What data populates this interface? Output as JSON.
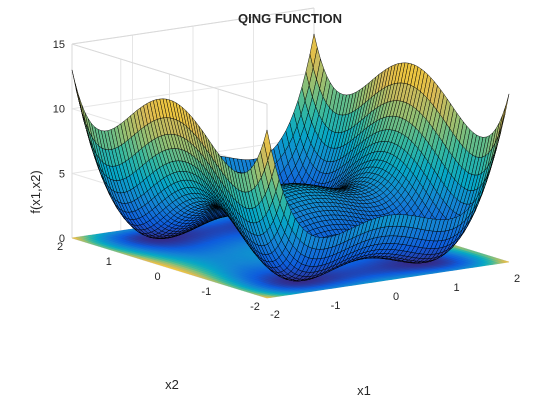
{
  "chart_data": {
    "type": "surface",
    "title": "QING FUNCTION",
    "function": "f(x1,x2) = (x1^2 - 1)^2 + (x2^2 - 2)^2",
    "xlabel": "x1",
    "ylabel": "x2",
    "zlabel": "f(x1,x2)",
    "xlim": [
      -2,
      2
    ],
    "ylim": [
      -2,
      2
    ],
    "zlim": [
      0,
      15
    ],
    "xticks": [
      "-2",
      "-1",
      "0",
      "1",
      "2"
    ],
    "yticks": [
      "-2",
      "-1",
      "0",
      "1",
      "2"
    ],
    "zticks": [
      "0",
      "5",
      "10",
      "15"
    ],
    "grid": true,
    "colormap": "parula",
    "mesh_edge_color": "#000000",
    "contour_floor": true,
    "colors": {
      "axis_text": "#262626",
      "grid": "#e6e6e6",
      "box": "#d9d9d9"
    }
  }
}
